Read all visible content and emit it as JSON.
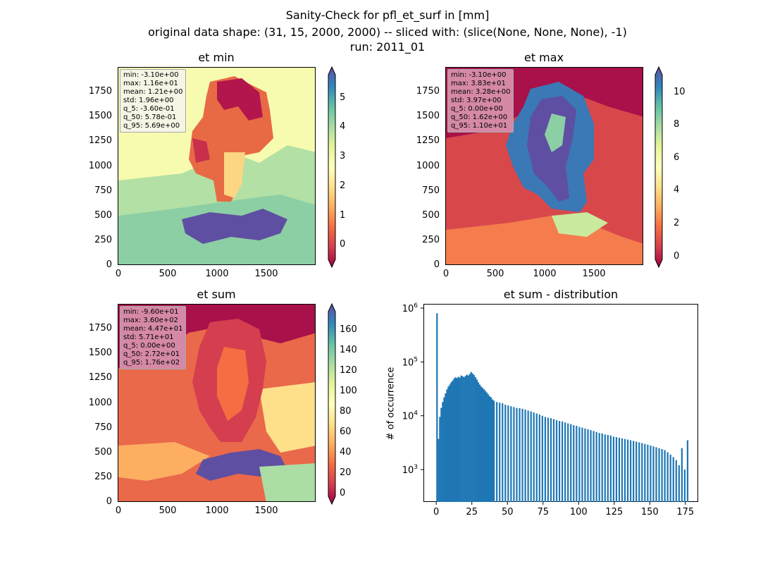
{
  "title": {
    "line1": "Sanity-Check for pfl_et_surf in [mm]",
    "line2": "original data shape: (31, 15, 2000, 2000) -- sliced with: (slice(None, None, None), -1)",
    "line3": "run: 2011_01"
  },
  "colormap": "Spectral",
  "colors": {
    "hist_bar": "#1f77b4",
    "stat_box_light": "#f5f5e6",
    "stat_box_dark": "#d589a7"
  },
  "panels": {
    "et_min": {
      "title": "et min",
      "stats": [
        "min: -3.10e+00",
        "max: 1.16e+01",
        "mean: 1.21e+00",
        "std: 1.96e+00",
        "q_5: -3.60e-01",
        "q_50: 5.78e-01",
        "q_95: 5.69e+00"
      ],
      "x_ticks": [
        "0",
        "500",
        "1000",
        "1500"
      ],
      "y_ticks": [
        "0",
        "250",
        "500",
        "750",
        "1000",
        "1250",
        "1500",
        "1750"
      ],
      "colorbar": {
        "range": [
          -0.36,
          5.69
        ],
        "ticks": [
          "0",
          "1",
          "2",
          "3",
          "4",
          "5"
        ],
        "extend": "both"
      }
    },
    "et_max": {
      "title": "et max",
      "stats": [
        "min: -3.10e+00",
        "max: 3.83e+01",
        "mean: 3.28e+00",
        "std: 3.97e+00",
        "q_5: 0.00e+00",
        "q_50: 1.62e+00",
        "q_95: 1.10e+01"
      ],
      "x_ticks": [
        "0",
        "500",
        "1000",
        "1500"
      ],
      "y_ticks": [
        "0",
        "250",
        "500",
        "750",
        "1000",
        "1250",
        "1500",
        "1750"
      ],
      "colorbar": {
        "range": [
          0,
          11.0
        ],
        "ticks": [
          "0",
          "2",
          "4",
          "6",
          "8",
          "10"
        ],
        "extend": "both"
      }
    },
    "et_sum": {
      "title": "et sum",
      "stats": [
        "min: -9.60e+01",
        "max: 3.60e+02",
        "mean: 4.47e+01",
        "std: 5.71e+01",
        "q_5: 0.00e+00",
        "q_50: 2.72e+01",
        "q_95: 1.76e+02"
      ],
      "x_ticks": [
        "0",
        "500",
        "1000",
        "1500"
      ],
      "y_ticks": [
        "0",
        "250",
        "500",
        "750",
        "1000",
        "1250",
        "1500",
        "1750"
      ],
      "colorbar": {
        "range": [
          0,
          176
        ],
        "ticks": [
          "0",
          "20",
          "40",
          "60",
          "80",
          "100",
          "120",
          "140",
          "160"
        ],
        "extend": "both"
      }
    }
  },
  "chart_data": [
    {
      "type": "heatmap",
      "title": "et min",
      "xlim": [
        0,
        2000
      ],
      "ylim": [
        0,
        2000
      ],
      "colormap": "Spectral",
      "vmin": -0.36,
      "vmax": 5.69
    },
    {
      "type": "heatmap",
      "title": "et max",
      "xlim": [
        0,
        2000
      ],
      "ylim": [
        0,
        2000
      ],
      "colormap": "Spectral",
      "vmin": 0,
      "vmax": 11.0
    },
    {
      "type": "heatmap",
      "title": "et sum",
      "xlim": [
        0,
        2000
      ],
      "ylim": [
        0,
        2000
      ],
      "colormap": "Spectral",
      "vmin": 0,
      "vmax": 176
    },
    {
      "type": "bar",
      "title": "et sum - distribution",
      "xlabel": "",
      "ylabel": "# of occurrence",
      "yscale": "log",
      "xlim": [
        -9,
        184
      ],
      "ylim": [
        250,
        1200000
      ],
      "x_ticks": [
        "0",
        "25",
        "50",
        "75",
        "100",
        "125",
        "150",
        "175"
      ],
      "y_ticks": [
        "10^3",
        "10^4",
        "10^5",
        "10^6"
      ],
      "bin_width": 1.1,
      "x": [
        0,
        1,
        2,
        3,
        4,
        5,
        6,
        7,
        8,
        9,
        10,
        11,
        12,
        13,
        14,
        15,
        16,
        17,
        18,
        19,
        20,
        21,
        22,
        23,
        24,
        25,
        26,
        27,
        28,
        29,
        30,
        31,
        32,
        33,
        34,
        35,
        36,
        37,
        38,
        39,
        40,
        42,
        44,
        46,
        48,
        50,
        52,
        54,
        56,
        58,
        60,
        62,
        64,
        66,
        68,
        70,
        72,
        74,
        76,
        78,
        80,
        82,
        84,
        86,
        88,
        90,
        92,
        94,
        96,
        98,
        100,
        102,
        104,
        106,
        108,
        110,
        112,
        114,
        116,
        118,
        120,
        122,
        124,
        126,
        128,
        130,
        132,
        134,
        136,
        138,
        140,
        142,
        144,
        146,
        148,
        150,
        152,
        154,
        156,
        158,
        160,
        162,
        164,
        166,
        168,
        170,
        172,
        174,
        176
      ],
      "values": [
        800000,
        3700,
        9500,
        14000,
        18000,
        22000,
        26000,
        31000,
        35000,
        38000,
        42000,
        45000,
        49000,
        52000,
        50000,
        53000,
        51000,
        56000,
        54000,
        52000,
        55000,
        58000,
        56000,
        60000,
        65000,
        61000,
        57000,
        52000,
        47000,
        42000,
        38000,
        35000,
        33000,
        31000,
        29000,
        27000,
        25000,
        23000,
        22000,
        20000,
        19000,
        18000,
        17500,
        17000,
        16000,
        15500,
        15000,
        14500,
        14000,
        13800,
        13500,
        13000,
        12500,
        12000,
        11500,
        11000,
        10500,
        10000,
        9500,
        9200,
        9000,
        8700,
        8300,
        8000,
        7800,
        7500,
        7200,
        7000,
        6700,
        6500,
        6200,
        6000,
        5800,
        5600,
        5400,
        5200,
        5000,
        4800,
        4700,
        4500,
        4400,
        4300,
        4100,
        4000,
        3900,
        3800,
        3700,
        3600,
        3500,
        3400,
        3300,
        3200,
        3100,
        3000,
        2900,
        2800,
        2700,
        2600,
        2500,
        2400,
        2300,
        2100,
        1900,
        1700,
        1500,
        1200,
        2500,
        1000,
        3500
      ]
    }
  ]
}
